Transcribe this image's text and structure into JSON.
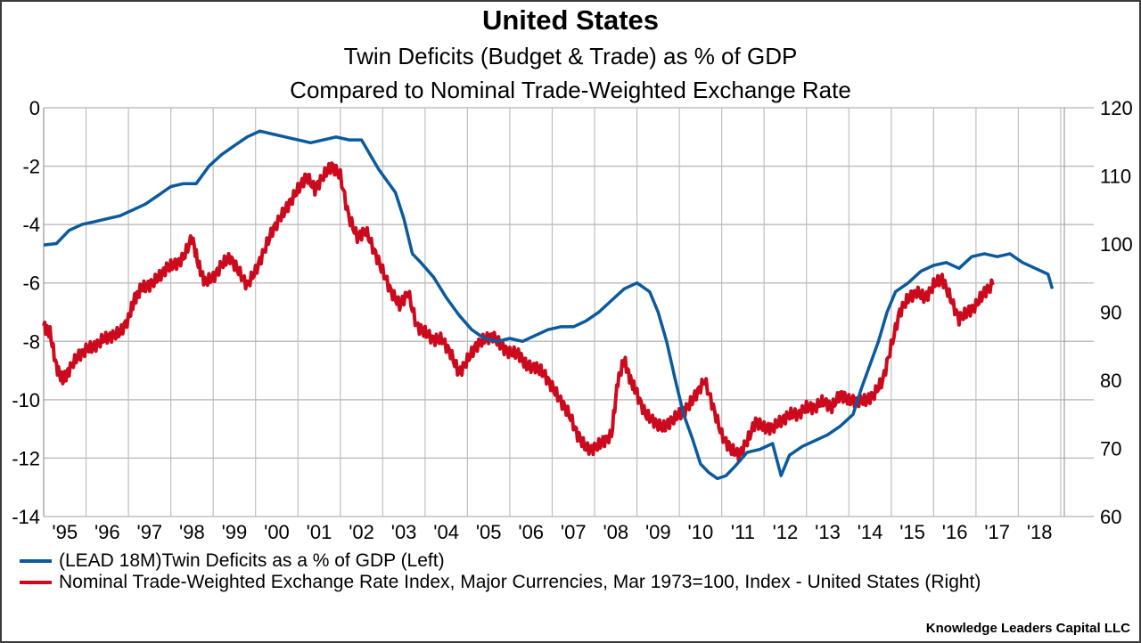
{
  "title": "United States",
  "subtitle1": "Twin Deficits (Budget & Trade) as % of GDP",
  "subtitle2": "Compared to Nominal Trade-Weighted Exchange Rate",
  "credit": "Knowledge Leaders Capital LLC",
  "colors": {
    "blue": "#0b5a9e",
    "red": "#cc0a1e",
    "grid": "#bfbfbf"
  },
  "chart_data": {
    "type": "line",
    "title": "United States",
    "xlabel": "",
    "ylabel_left": "",
    "ylabel_right": "",
    "x_tick_labels": [
      "'95",
      "'96",
      "'97",
      "'98",
      "'99",
      "'00",
      "'01",
      "'02",
      "'03",
      "'04",
      "'05",
      "'06",
      "'07",
      "'08",
      "'09",
      "'10",
      "'11",
      "'12",
      "'13",
      "'14",
      "'15",
      "'16",
      "'17",
      "'18"
    ],
    "xlim": [
      1995.0,
      2019.8
    ],
    "ylim_left": [
      -14,
      0
    ],
    "yticks_left": [
      0,
      -2,
      -4,
      -6,
      -8,
      -10,
      -12,
      -14
    ],
    "ylim_right": [
      60,
      120
    ],
    "yticks_right": [
      120,
      110,
      100,
      90,
      80,
      70,
      60
    ],
    "grid": true,
    "legend_position": "bottom",
    "series": [
      {
        "name": "(LEAD 18M)Twin Deficits as a % of GDP (Left)",
        "axis": "left",
        "color": "#0b5a9e",
        "x": [
          1995.0,
          1995.3,
          1995.6,
          1995.9,
          1996.2,
          1996.5,
          1996.8,
          1997.1,
          1997.4,
          1997.7,
          1998.0,
          1998.3,
          1998.6,
          1998.9,
          1999.2,
          1999.5,
          1999.8,
          2000.1,
          2000.4,
          2000.7,
          2001.0,
          2001.3,
          2001.6,
          2001.9,
          2002.2,
          2002.5,
          2002.7,
          2002.9,
          2003.1,
          2003.3,
          2003.5,
          2003.7,
          2003.9,
          2004.2,
          2004.5,
          2004.8,
          2005.1,
          2005.4,
          2005.7,
          2006.0,
          2006.3,
          2006.6,
          2006.9,
          2007.2,
          2007.5,
          2007.8,
          2008.1,
          2008.4,
          2008.7,
          2009.0,
          2009.3,
          2009.5,
          2009.7,
          2009.9,
          2010.1,
          2010.3,
          2010.5,
          2010.7,
          2010.9,
          2011.1,
          2011.3,
          2011.6,
          2011.9,
          2012.2,
          2012.4,
          2012.6,
          2012.9,
          2013.2,
          2013.5,
          2013.8,
          2014.1,
          2014.3,
          2014.5,
          2014.7,
          2014.9,
          2015.1,
          2015.4,
          2015.7,
          2016.0,
          2016.3,
          2016.6,
          2016.9,
          2017.2,
          2017.5,
          2017.8,
          2018.1,
          2018.4,
          2018.7,
          2018.8
        ],
        "y": [
          -4.7,
          -4.65,
          -4.2,
          -4.0,
          -3.9,
          -3.8,
          -3.7,
          -3.5,
          -3.3,
          -3.0,
          -2.7,
          -2.6,
          -2.6,
          -2.0,
          -1.6,
          -1.3,
          -1.0,
          -0.8,
          -0.9,
          -1.0,
          -1.1,
          -1.2,
          -1.1,
          -1.0,
          -1.1,
          -1.1,
          -1.6,
          -2.1,
          -2.5,
          -2.9,
          -3.8,
          -5.0,
          -5.3,
          -5.8,
          -6.5,
          -7.1,
          -7.6,
          -7.9,
          -8.0,
          -7.9,
          -8.0,
          -7.8,
          -7.6,
          -7.5,
          -7.5,
          -7.3,
          -7.0,
          -6.6,
          -6.2,
          -6.0,
          -6.3,
          -7.0,
          -8.0,
          -9.3,
          -10.5,
          -11.3,
          -12.2,
          -12.5,
          -12.7,
          -12.6,
          -12.3,
          -11.8,
          -11.7,
          -11.5,
          -12.6,
          -11.9,
          -11.6,
          -11.4,
          -11.2,
          -10.9,
          -10.5,
          -9.6,
          -8.8,
          -8.0,
          -7.0,
          -6.3,
          -6.0,
          -5.6,
          -5.4,
          -5.3,
          -5.5,
          -5.1,
          -5.0,
          -5.1,
          -5.0,
          -5.3,
          -5.5,
          -5.7,
          -6.2
        ]
      },
      {
        "name": "Nominal Trade-Weighted Exchange Rate Index, Major Currencies, Mar 1973=100, Index - United States  (Right)",
        "axis": "right",
        "color": "#cc0a1e",
        "x": [
          1995.0,
          1995.15,
          1995.3,
          1995.45,
          1995.6,
          1995.8,
          1996.0,
          1996.2,
          1996.4,
          1996.6,
          1996.8,
          1997.0,
          1997.15,
          1997.3,
          1997.5,
          1997.7,
          1997.9,
          1998.1,
          1998.3,
          1998.5,
          1998.65,
          1998.8,
          1999.0,
          1999.2,
          1999.4,
          1999.6,
          1999.8,
          2000.0,
          2000.2,
          2000.4,
          2000.6,
          2000.8,
          2001.0,
          2001.2,
          2001.4,
          2001.6,
          2001.8,
          2002.0,
          2002.2,
          2002.4,
          2002.6,
          2002.8,
          2003.0,
          2003.2,
          2003.4,
          2003.6,
          2003.8,
          2004.0,
          2004.2,
          2004.4,
          2004.6,
          2004.8,
          2005.0,
          2005.2,
          2005.4,
          2005.6,
          2005.8,
          2006.0,
          2006.2,
          2006.4,
          2006.6,
          2006.8,
          2007.0,
          2007.2,
          2007.4,
          2007.6,
          2007.8,
          2008.0,
          2008.2,
          2008.4,
          2008.55,
          2008.7,
          2008.85,
          2009.0,
          2009.2,
          2009.4,
          2009.6,
          2009.8,
          2010.0,
          2010.2,
          2010.4,
          2010.6,
          2010.8,
          2011.0,
          2011.2,
          2011.4,
          2011.6,
          2011.8,
          2012.0,
          2012.2,
          2012.4,
          2012.6,
          2012.8,
          2013.0,
          2013.2,
          2013.4,
          2013.6,
          2013.8,
          2014.0,
          2014.2,
          2014.4,
          2014.6,
          2014.8,
          2015.0,
          2015.2,
          2015.4,
          2015.6,
          2015.8,
          2016.0,
          2016.2,
          2016.4,
          2016.6,
          2016.8,
          2017.0,
          2017.2,
          2017.4
        ],
        "y": [
          88,
          87,
          82,
          80,
          81.5,
          83.5,
          84.5,
          85,
          86,
          86.5,
          87,
          89,
          92,
          93.5,
          94,
          95,
          96.5,
          97,
          98,
          101,
          97,
          94.5,
          95,
          97,
          98,
          96,
          94,
          96,
          99,
          102,
          104,
          106,
          108,
          110,
          108,
          110,
          111.5,
          110,
          104,
          101,
          102,
          99,
          96,
          93,
          91,
          93,
          88,
          87,
          86,
          86,
          84,
          81,
          83,
          85,
          86,
          86.5,
          85,
          84,
          84,
          82,
          82,
          81,
          79,
          77,
          75,
          72,
          70,
          70,
          71,
          72,
          80,
          83,
          80,
          78,
          75,
          74,
          73,
          74,
          75,
          76,
          78,
          80,
          76,
          72,
          70,
          69,
          71,
          74,
          73,
          73,
          74,
          75,
          75,
          76,
          76,
          77,
          76,
          78,
          77,
          77,
          77,
          78,
          80,
          85,
          90,
          92,
          93,
          92,
          94,
          95,
          92,
          89,
          90,
          91,
          93,
          94
        ]
      }
    ]
  },
  "legend": [
    {
      "label": "(LEAD 18M)Twin Deficits as a % of GDP (Left)",
      "color": "#0b5a9e"
    },
    {
      "label": "Nominal Trade-Weighted Exchange Rate Index, Major Currencies, Mar 1973=100, Index - United States  (Right)",
      "color": "#cc0a1e"
    }
  ]
}
